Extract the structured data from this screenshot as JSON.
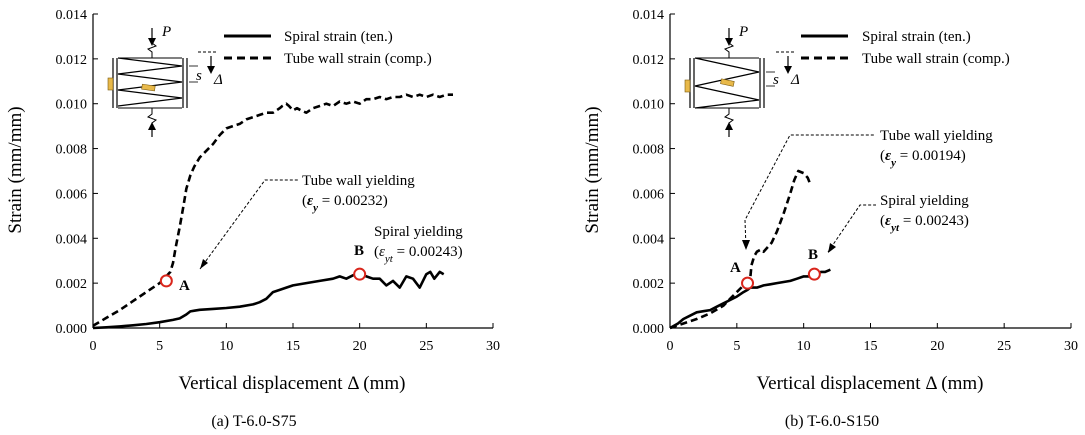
{
  "chart_data": [
    {
      "type": "line",
      "caption": "(a) T-6.0-S75",
      "xlabel": "Vertical displacement Δ (mm)",
      "ylabel": "Strain (mm/mm)",
      "xlim": [
        0,
        30
      ],
      "ylim": [
        0,
        0.014
      ],
      "xticks": [
        "0",
        "5",
        "10",
        "15",
        "20",
        "25",
        "30"
      ],
      "yticks": [
        "0.000",
        "0.002",
        "0.004",
        "0.006",
        "0.008",
        "0.010",
        "0.012",
        "0.014"
      ],
      "inset": {
        "load_label": "P",
        "pitch_label": "s",
        "disp_label": "Δ",
        "style": "tight"
      },
      "series": [
        {
          "name": "Spiral strain (ten.)",
          "style": "solid",
          "x": [
            0,
            1,
            2,
            3,
            4,
            5,
            6,
            6.5,
            7,
            7.3,
            7.6,
            8,
            9,
            10,
            11,
            12,
            12.5,
            13,
            13.5,
            14,
            14.5,
            15,
            16,
            17,
            18,
            18.5,
            19,
            19.5,
            20,
            20.5,
            21,
            21.5,
            22,
            22.5,
            23,
            23.5,
            24,
            24.5,
            25,
            25.3,
            25.6,
            26,
            26.3
          ],
          "y": [
            0,
            3e-05,
            7e-05,
            0.00012,
            0.00018,
            0.00026,
            0.00036,
            0.00043,
            0.0006,
            0.00074,
            0.00077,
            0.00081,
            0.00085,
            0.00089,
            0.00095,
            0.00105,
            0.00115,
            0.0013,
            0.0016,
            0.0017,
            0.0018,
            0.0019,
            0.002,
            0.0021,
            0.0022,
            0.0023,
            0.0022,
            0.00235,
            0.0024,
            0.0023,
            0.0022,
            0.0022,
            0.0019,
            0.0021,
            0.0018,
            0.0023,
            0.0022,
            0.0018,
            0.0024,
            0.0025,
            0.0022,
            0.0025,
            0.0024
          ]
        },
        {
          "name": "Tube wall strain (comp.)",
          "style": "dashed",
          "x": [
            0,
            1,
            2,
            3,
            4,
            5,
            5.5,
            5.8,
            6,
            6.2,
            6.5,
            6.8,
            7,
            7.3,
            7.6,
            8,
            8.5,
            9,
            9.5,
            10,
            10.5,
            11,
            11.5,
            12,
            12.5,
            13,
            13.5,
            14,
            14.2,
            14.5,
            14.7,
            15,
            15.3,
            15.6,
            16,
            16.5,
            17,
            17.5,
            18,
            18.5,
            19,
            19.5,
            20,
            20.5,
            21,
            21.5,
            22,
            22.5,
            23,
            23.5,
            24,
            24.5,
            25,
            25.5,
            26,
            26.5,
            27
          ],
          "y": [
            0.0001,
            0.00045,
            0.0008,
            0.0012,
            0.0016,
            0.002,
            0.0023,
            0.0025,
            0.0029,
            0.0036,
            0.0045,
            0.0055,
            0.0062,
            0.0068,
            0.0072,
            0.0076,
            0.0079,
            0.0082,
            0.0086,
            0.0089,
            0.009,
            0.0091,
            0.0093,
            0.0094,
            0.0095,
            0.0096,
            0.0096,
            0.0098,
            0.0099,
            0.01,
            0.0099,
            0.0097,
            0.0098,
            0.0097,
            0.0096,
            0.0098,
            0.0099,
            0.01,
            0.0099,
            0.0101,
            0.01,
            0.0101,
            0.01,
            0.0102,
            0.0102,
            0.0103,
            0.0102,
            0.0103,
            0.0103,
            0.0104,
            0.0103,
            0.0104,
            0.0103,
            0.0104,
            0.0103,
            0.0104,
            0.0104
          ]
        }
      ],
      "points": [
        {
          "label": "A",
          "x": 5.5,
          "y": 0.0021
        },
        {
          "label": "B",
          "x": 20,
          "y": 0.0024
        }
      ],
      "annotations": [
        {
          "line1": "Tube wall yielding",
          "eps_sym": "ε",
          "eps_sub": "y",
          "eps_val": " = 0.00232"
        },
        {
          "line1": "Spiral yielding",
          "eps_sym": "ε",
          "eps_sub": "yt",
          "eps_val": " = 0.00243"
        }
      ]
    },
    {
      "type": "line",
      "caption": "(b) T-6.0-S150",
      "xlabel": "Vertical displacement Δ (mm)",
      "ylabel": "Strain (mm/mm)",
      "xlim": [
        0,
        30
      ],
      "ylim": [
        0,
        0.014
      ],
      "xticks": [
        "0",
        "5",
        "10",
        "15",
        "20",
        "25",
        "30"
      ],
      "yticks": [
        "0.000",
        "0.002",
        "0.004",
        "0.006",
        "0.008",
        "0.010",
        "0.012",
        "0.014"
      ],
      "inset": {
        "load_label": "P",
        "pitch_label": "s",
        "disp_label": "Δ",
        "style": "wide"
      },
      "series": [
        {
          "name": "Spiral strain (ten.)",
          "style": "solid",
          "x": [
            0,
            0.3,
            0.6,
            1,
            1.5,
            2,
            2.5,
            3,
            3.5,
            4,
            4.5,
            5,
            5.5,
            5.8,
            6,
            6.5,
            7,
            7.5,
            8,
            8.5,
            9,
            9.5,
            10,
            10.5,
            11,
            11.3,
            11.6,
            12
          ],
          "y": [
            0,
            0.0001,
            0.0002,
            0.0004,
            0.00055,
            0.0007,
            0.00075,
            0.0008,
            0.00095,
            0.0011,
            0.00125,
            0.0014,
            0.0016,
            0.0017,
            0.0018,
            0.0018,
            0.0019,
            0.00195,
            0.002,
            0.00205,
            0.0021,
            0.0022,
            0.0023,
            0.0023,
            0.0024,
            0.0025,
            0.0025,
            0.0026
          ]
        },
        {
          "name": "Tube wall strain (comp.)",
          "style": "dashed",
          "x": [
            0,
            1,
            2,
            3,
            4,
            4.5,
            5,
            5.5,
            5.8,
            6,
            6.1,
            6.3,
            6.5,
            6.8,
            7,
            7.3,
            7.6,
            8,
            8.5,
            9,
            9.3,
            9.6,
            10,
            10.3,
            10.5
          ],
          "y": [
            0,
            0.0002,
            0.0004,
            0.00065,
            0.001,
            0.0013,
            0.0016,
            0.0019,
            0.002,
            0.0022,
            0.0028,
            0.0032,
            0.0034,
            0.0035,
            0.0034,
            0.0036,
            0.0038,
            0.0043,
            0.0051,
            0.006,
            0.0066,
            0.007,
            0.0069,
            0.0067,
            0.0064
          ]
        }
      ],
      "points": [
        {
          "label": "A",
          "x": 5.8,
          "y": 0.002
        },
        {
          "label": "B",
          "x": 10.8,
          "y": 0.0024
        }
      ],
      "annotations": [
        {
          "line1": "Tube wall yielding",
          "eps_sym": "ε",
          "eps_sub": "y",
          "eps_val": " = 0.00194"
        },
        {
          "line1": "Spiral yielding",
          "eps_sym": "ε",
          "eps_sub": "yt",
          "eps_val": " = 0.00243"
        }
      ]
    }
  ]
}
